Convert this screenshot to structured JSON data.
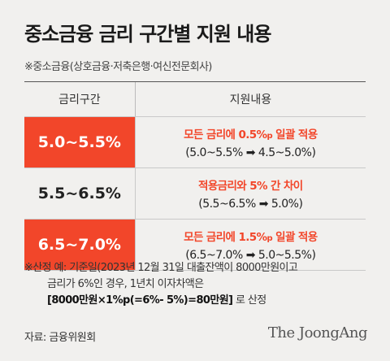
{
  "title": "중소금융 금리 구간별 지원 내용",
  "subtitle": "※중소금융(상호금융·저축은행·여신전문회사)",
  "table": {
    "headers": [
      "금리구간",
      "지원내용"
    ],
    "rows": [
      {
        "range": "5.0~5.5%",
        "support_pre": "모든 금리에 0.5%",
        "support_p": "p",
        "support_post": " 일괄 적용",
        "detail": "(5.0~5.5% ➡ 4.5~5.0%)",
        "highlighted": true
      },
      {
        "range": "5.5~6.5%",
        "support_pre": "적용금리와 5% 간 차이",
        "support_p": "",
        "support_post": "",
        "detail": "(5.5~6.5% ➡ 5.0%)",
        "highlighted": false
      },
      {
        "range": "6.5~7.0%",
        "support_pre": "모든 금리에 1.5%",
        "support_p": "p",
        "support_post": " 일괄 적용",
        "detail": "(6.5~7.0% ➡ 5.0~5.5%)",
        "highlighted": true
      }
    ]
  },
  "note": {
    "line1": "※산정 예: 기준일(2023년 12월 31일 대출잔액이 8000만원이고",
    "line2": "금리가 6%인 경우, 1년치 이자차액은",
    "line3_bold": "[8000만원×1%p(=6%- 5%)=80만원]",
    "line3_rest": "로 산정"
  },
  "source": "자료: 금융위원회",
  "brand": "The JoongAng",
  "colors": {
    "accent": "#f2462a",
    "background": "#f1f0ee"
  }
}
